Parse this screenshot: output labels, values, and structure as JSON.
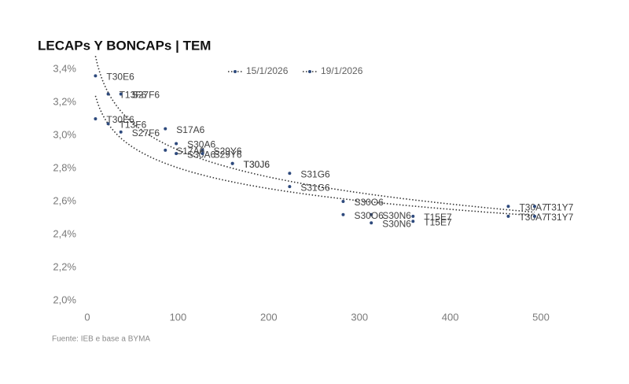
{
  "chart_data": {
    "type": "scatter",
    "title": "LECAPs Y BONCAPs | TEM",
    "source": "Fuente: IEB e base a BYMA",
    "xlim": [
      -10,
      550
    ],
    "xticks": [
      0,
      100,
      200,
      300,
      400,
      500
    ],
    "ylim": [
      2.0,
      3.5
    ],
    "yticks": [
      {
        "value": 2.0,
        "label": "2,0%"
      },
      {
        "value": 2.2,
        "label": "2,2%"
      },
      {
        "value": 2.4,
        "label": "2,4%"
      },
      {
        "value": 2.6,
        "label": "2,6%"
      },
      {
        "value": 2.8,
        "label": "2,8%"
      },
      {
        "value": 3.0,
        "label": "3,0%"
      },
      {
        "value": 3.2,
        "label": "3,2%"
      },
      {
        "value": 3.4,
        "label": "3,4%"
      }
    ],
    "trendline": "log",
    "series": [
      {
        "name": "15/1/2026",
        "color": "#2e4a7d",
        "x": [
          9,
          23,
          37,
          86,
          98,
          127,
          160,
          223,
          282,
          313,
          359,
          464,
          493
        ],
        "values": [
          3.36,
          3.25,
          3.25,
          3.04,
          2.95,
          2.91,
          2.83,
          2.77,
          2.6,
          2.52,
          2.51,
          2.57,
          2.57
        ],
        "labels": [
          "T30E6",
          "T13F6",
          "S27F6",
          "S17A6",
          "S30A6",
          "S29Y6",
          "T30J6",
          "S31G6",
          "S30O6",
          "S30N6",
          "T15E7",
          "T30A7",
          "T31Y7"
        ]
      },
      {
        "name": "19/1/2026",
        "color": "#2e4a7d",
        "x": [
          9,
          23,
          37,
          86,
          98,
          127,
          160,
          223,
          282,
          313,
          359,
          464,
          493
        ],
        "values": [
          3.1,
          3.07,
          3.02,
          2.91,
          2.89,
          2.89,
          2.83,
          2.69,
          2.52,
          2.47,
          2.48,
          2.51,
          2.51
        ],
        "labels": [
          "T30E6",
          "T13F6",
          "S27F6",
          "S17A6",
          "S30A6",
          "S29Y6",
          "T30J6",
          "S31G6",
          "S30O6",
          "S30N6",
          "T15E7",
          "T30A7",
          "T31Y7"
        ]
      }
    ]
  }
}
